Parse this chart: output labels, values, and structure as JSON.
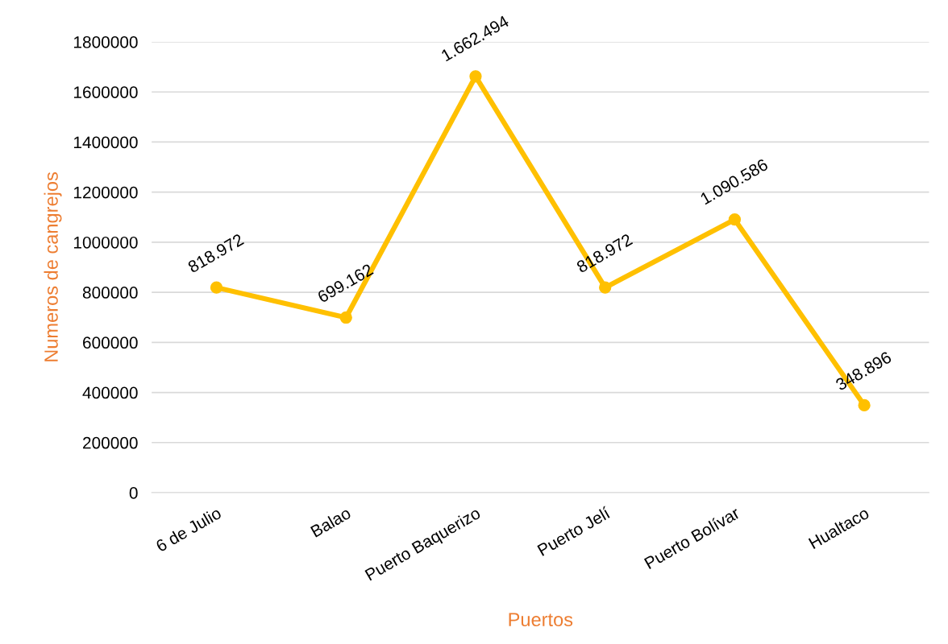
{
  "chart_data": {
    "type": "line",
    "xlabel": "Puertos",
    "ylabel": "Numeros de cangrejos",
    "categories": [
      "6 de Julio",
      "Balao",
      "Puerto Baquerizo",
      "Puerto Jelí",
      "Puerto Bolívar",
      "Hualtaco"
    ],
    "series": [
      {
        "color": "#ffc000",
        "values": [
          818972,
          699162,
          1662494,
          818972,
          1090586,
          348896
        ],
        "value_labels": [
          "818.972",
          "699.162",
          "1.662.494",
          "818.972",
          "1.090.586",
          "348.896"
        ]
      }
    ],
    "ylim": [
      0,
      1800000
    ],
    "yticks": [
      0,
      200000,
      400000,
      600000,
      800000,
      1000000,
      1200000,
      1400000,
      1600000,
      1800000
    ],
    "grid": "y",
    "marker": "circle",
    "line_style": "solid",
    "legend": false
  }
}
